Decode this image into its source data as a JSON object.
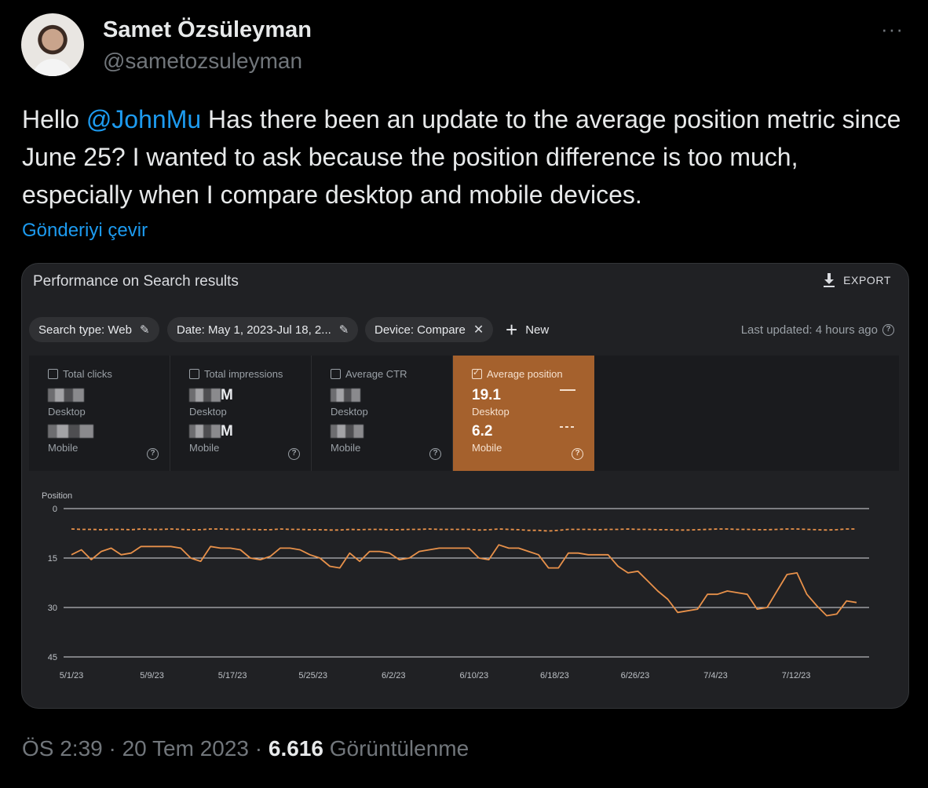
{
  "author": {
    "name": "Samet Özsüleyman",
    "handle": "@sametozsuleyman"
  },
  "more_label": "···",
  "tweet": {
    "before": "Hello ",
    "mention": "@JohnMu",
    "after": " Has there been an update to the average position metric since June 25? I wanted to ask because the position difference is too much, especially when I compare desktop and mobile devices.",
    "translate_label": "Gönderiyi çevir"
  },
  "media": {
    "title": "Performance on Search results",
    "export_label": "EXPORT",
    "filters": {
      "search_type": "Search type: Web",
      "date": "Date: May 1, 2023-Jul 18, 2...",
      "device": "Device: Compare",
      "new_label": "New"
    },
    "last_updated": "Last updated: 4 hours ago",
    "metrics": [
      {
        "label": "Total clicks",
        "desktop_label": "Desktop",
        "mobile_label": "Mobile"
      },
      {
        "label": "Total impressions",
        "desktop_suffix": "M",
        "mobile_suffix": "M",
        "desktop_label": "Desktop",
        "mobile_label": "Mobile"
      },
      {
        "label": "Average CTR",
        "desktop_label": "Desktop",
        "mobile_label": "Mobile"
      },
      {
        "label": "Average position",
        "desktop_value": "19.1",
        "desktop_label": "Desktop",
        "mobile_value": "6.2",
        "mobile_label": "Mobile"
      }
    ],
    "accent_color": "#a5612d",
    "line_color": "#e8914a"
  },
  "chart_data": {
    "type": "line",
    "ylabel": "Position",
    "y_reversed": true,
    "ylim": [
      0,
      45
    ],
    "yticks": [
      0,
      15,
      30,
      45
    ],
    "x_tick_labels": [
      "5/1/23",
      "5/9/23",
      "5/17/23",
      "5/25/23",
      "6/2/23",
      "6/10/23",
      "6/18/23",
      "6/26/23",
      "7/4/23",
      "7/12/23"
    ],
    "x_start": "2023-05-01",
    "x_end": "2023-07-18",
    "grid": true,
    "series": [
      {
        "name": "Desktop",
        "style": "solid",
        "values": [
          14,
          12.5,
          15.5,
          13,
          12,
          14,
          13.5,
          11.5,
          11.5,
          11.5,
          11.5,
          12,
          15,
          16,
          11.5,
          12,
          12,
          12.5,
          15,
          15.5,
          14.5,
          12,
          12,
          12.5,
          14,
          15,
          17.5,
          18,
          13.5,
          16,
          13,
          13,
          13.5,
          15.5,
          15,
          13,
          12.5,
          12,
          12,
          12,
          12,
          15,
          15.5,
          11,
          12,
          12,
          13,
          14,
          18,
          18,
          13.5,
          13.5,
          14,
          14,
          14,
          17.5,
          19.5,
          19,
          22,
          25,
          27.5,
          31.5,
          31,
          30.5,
          26,
          26,
          25,
          25.5,
          26,
          30.5,
          30,
          25,
          20,
          19.5,
          26,
          29.5,
          32.5,
          32,
          28,
          28.5
        ]
      },
      {
        "name": "Mobile",
        "style": "dashed",
        "values": [
          6.2,
          6.3,
          6.3,
          6.4,
          6.3,
          6.3,
          6.4,
          6.2,
          6.3,
          6.3,
          6.2,
          6.3,
          6.4,
          6.4,
          6.2,
          6.2,
          6.3,
          6.3,
          6.3,
          6.4,
          6.4,
          6.2,
          6.3,
          6.3,
          6.4,
          6.4,
          6.5,
          6.5,
          6.3,
          6.4,
          6.3,
          6.3,
          6.4,
          6.4,
          6.3,
          6.3,
          6.2,
          6.3,
          6.3,
          6.3,
          6.3,
          6.5,
          6.4,
          6.2,
          6.3,
          6.4,
          6.6,
          6.6,
          6.8,
          6.6,
          6.3,
          6.3,
          6.3,
          6.4,
          6.3,
          6.3,
          6.2,
          6.3,
          6.3,
          6.4,
          6.4,
          6.5,
          6.5,
          6.4,
          6.3,
          6.2,
          6.2,
          6.3,
          6.3,
          6.4,
          6.4,
          6.3,
          6.2,
          6.2,
          6.3,
          6.4,
          6.5,
          6.4,
          6.2,
          6.2
        ]
      }
    ]
  },
  "footer": {
    "time": "ÖS 2:39 · 20 Tem 2023 · ",
    "views_count": "6.616",
    "views_label": " Görüntülenme"
  }
}
